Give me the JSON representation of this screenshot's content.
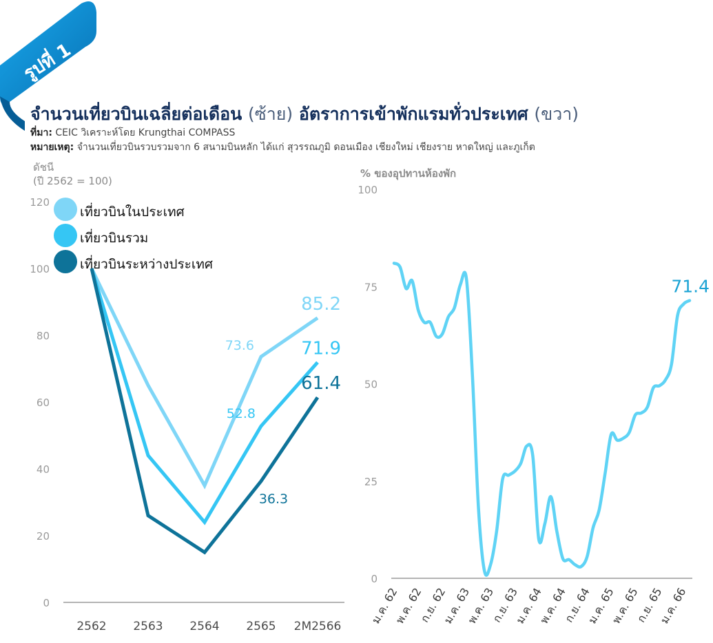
{
  "badge": {
    "label": "รูปที่ 1",
    "color": "#0a8fd6"
  },
  "header": {
    "title_main": "จำนวนเที่ยวบินเฉลี่ยต่อเดือน",
    "title_left_tag": "(ซ้าย)",
    "title_second": "อัตราการเข้าพักแรมทั่วประเทศ",
    "title_right_tag": "(ขวา)",
    "source_label": "ที่มา:",
    "source_text": "CEIC วิเคราะห์โดย Krungthai COMPASS",
    "note_label": "หมายเหตุ:",
    "note_text": "จำนวนเที่ยวบินรวบรวมจาก 6 สนามบินหลัก ได้แก่ สุวรรณภูมิ ดอนเมือง เชียงใหม่ เชียงราย หาดใหญ่ และภูเก็ต"
  },
  "chart_data": [
    {
      "type": "line",
      "ylabel_line1": "ดัชนี",
      "ylabel_line2": "(ปี 2562 = 100)",
      "categories": [
        "2562",
        "2563",
        "2564",
        "2565",
        "2M2566"
      ],
      "ylim": [
        0,
        120
      ],
      "yticks": [
        0,
        20,
        40,
        60,
        80,
        100,
        120
      ],
      "grid": false,
      "legend_position": "top-left",
      "series": [
        {
          "name": "เที่ยวบินในประเทศ",
          "color": "#7fd6f7",
          "values": [
            100,
            65,
            35,
            73.6,
            85.2
          ],
          "labels": [
            null,
            null,
            null,
            "73.6",
            "85.2"
          ]
        },
        {
          "name": "เที่ยวบินรวม",
          "color": "#35c6f4",
          "values": [
            100,
            44,
            24,
            52.8,
            71.9
          ],
          "labels": [
            null,
            null,
            null,
            "52.8",
            "71.9"
          ]
        },
        {
          "name": "เที่ยวบินระหว่างประเทศ",
          "color": "#0e7399",
          "values": [
            100,
            26,
            15,
            36.3,
            61.4
          ],
          "labels": [
            null,
            null,
            null,
            "36.3",
            "61.4"
          ]
        }
      ]
    },
    {
      "type": "line",
      "ylabel": "% ของอุปทานห้องพัก",
      "ylim": [
        0,
        100
      ],
      "yticks": [
        0,
        25,
        50,
        75,
        100
      ],
      "x_tick_labels": [
        "ม.ค. 62",
        "พ.ค. 62",
        "ก.ย. 62",
        "ม.ค. 63",
        "พ.ค. 63",
        "ก.ย. 63",
        "ม.ค. 64",
        "พ.ค. 64",
        "ก.ย. 64",
        "ม.ค. 65",
        "พ.ค. 65",
        "ก.ย. 65",
        "ม.ค. 66"
      ],
      "grid": false,
      "series": [
        {
          "color": "#5fd3f5",
          "values": [
            81,
            80,
            74.5,
            76.5,
            69,
            65.8,
            65.8,
            62.2,
            62.8,
            67.2,
            69.5,
            75.5,
            77,
            52,
            18,
            1.8,
            3.5,
            12,
            25.5,
            26.5,
            27.5,
            29.5,
            34,
            31.5,
            10,
            14,
            21,
            12,
            5,
            4.8,
            3.5,
            3,
            5.5,
            13,
            17.5,
            27,
            37,
            35.5,
            36,
            37.5,
            42,
            42.5,
            44,
            49,
            49.5,
            51,
            55,
            67.5,
            70.5,
            71.4
          ],
          "end_label": "71.4"
        }
      ]
    }
  ]
}
